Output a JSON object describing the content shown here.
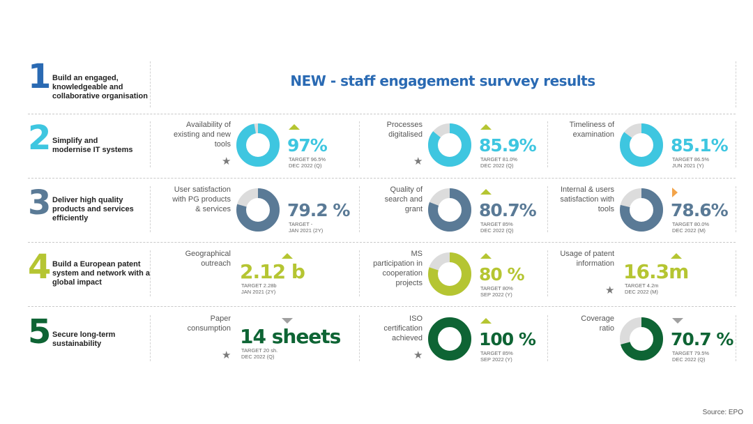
{
  "headline": "NEW - staff engagement survvey results",
  "source": "Source: EPO",
  "colors": {
    "blue_dark": "#2a6ab3",
    "cyan": "#3ec6e0",
    "slate": "#5a7a96",
    "lime": "#b5c532",
    "green": "#0e6434",
    "grey_ring": "#dcdcdc",
    "trend_up": "#b5c532",
    "trend_down": "#a0a0a0",
    "trend_neutral": "#f3a44a"
  },
  "objectives": [
    {
      "number": "1",
      "title_lines": [
        "Build an engaged,",
        "knowledgeable and",
        "collaborative organisation"
      ],
      "color": "#2a6ab3"
    },
    {
      "number": "2",
      "title_lines": [
        "Simplify and",
        "modernise IT systems"
      ],
      "color": "#3ec6e0"
    },
    {
      "number": "3",
      "title_lines": [
        "Deliver high quality",
        "products and services",
        "efficiently"
      ],
      "color": "#5a7a96"
    },
    {
      "number": "4",
      "title_lines": [
        "Build a European patent",
        "system and network with a",
        "global impact"
      ],
      "color": "#b5c532"
    },
    {
      "number": "5",
      "title_lines": [
        "Secure long-term",
        "sustainability"
      ],
      "color": "#0e6434"
    }
  ],
  "kpis": [
    [
      {
        "label_lines": [
          "Availability of",
          "existing and new",
          "tools"
        ],
        "value": "97%",
        "percent": 97,
        "target": "TARGET 96.5%",
        "date": "DEC 2022 (Q)",
        "trend": "up",
        "star": true,
        "donut": true,
        "color": "#3ec6e0"
      },
      {
        "label_lines": [
          "Processes",
          "digitalised"
        ],
        "value": "85.9%",
        "percent": 85.9,
        "target": "TARGET 81.0%",
        "date": "DEC 2022 (Q)",
        "trend": "up",
        "star": true,
        "donut": true,
        "color": "#3ec6e0"
      },
      {
        "label_lines": [
          "Timeliness of",
          "examination"
        ],
        "value": "85.1%",
        "percent": 85.1,
        "target": "TARGET 86.5%",
        "date": "JUN 2021 (Y)",
        "trend": "none",
        "star": false,
        "donut": true,
        "color": "#3ec6e0"
      }
    ],
    [
      {
        "label_lines": [
          "User satisfaction",
          "with PG products",
          "& services"
        ],
        "value": "79.2 %",
        "percent": 79.2,
        "target": "TARGET -",
        "date": "JAN 2021 (2Y)",
        "trend": "none",
        "star": false,
        "donut": true,
        "color": "#5a7a96"
      },
      {
        "label_lines": [
          "Quality of",
          "search and",
          "grant"
        ],
        "value": "80.7%",
        "percent": 80.7,
        "target": "TARGET 85%",
        "date": "DEC 2022 (Q)",
        "trend": "up",
        "star": false,
        "donut": true,
        "color": "#5a7a96"
      },
      {
        "label_lines": [
          "Internal & users",
          "satisfaction with",
          "tools"
        ],
        "value": "78.6%",
        "percent": 78.6,
        "target": "TARGET 80.0%",
        "date": "DEC 2022 (M)",
        "trend": "neutral",
        "star": false,
        "donut": true,
        "color": "#5a7a96"
      }
    ],
    [
      {
        "label_lines": [
          "Geographical",
          "outreach"
        ],
        "value": "2.12 b",
        "percent": null,
        "target": "TARGET 2.28b",
        "date": "JAN 2021 (2Y)",
        "trend": "up",
        "star": false,
        "donut": false,
        "color": "#b5c532"
      },
      {
        "label_lines": [
          "MS",
          "participation in",
          "cooperation",
          "projects"
        ],
        "value": "80 %",
        "percent": 80,
        "target": "TARGET 80%",
        "date": "SEP 2022 (Y)",
        "trend": "up",
        "star": false,
        "donut": true,
        "color": "#b5c532"
      },
      {
        "label_lines": [
          "Usage of patent",
          "information"
        ],
        "value": "16.3m",
        "percent": null,
        "target": "TARGET 4.2m",
        "date": "DEC 2022 (M)",
        "trend": "up",
        "star": true,
        "donut": false,
        "color": "#b5c532"
      }
    ],
    [
      {
        "label_lines": [
          "Paper",
          "consumption"
        ],
        "value": "14 sheets",
        "percent": null,
        "target": "TARGET 20 sh.",
        "date": "DEC 2022 (Q)",
        "trend": "down",
        "star": true,
        "donut": false,
        "color": "#0e6434"
      },
      {
        "label_lines": [
          "ISO",
          "certification",
          "achieved"
        ],
        "value": "100 %",
        "percent": 100,
        "target": "TARGET 85%",
        "date": "SEP 2022 (Y)",
        "trend": "up",
        "star": true,
        "donut": true,
        "color": "#0e6434"
      },
      {
        "label_lines": [
          "Coverage",
          "ratio"
        ],
        "value": "70.7 %",
        "percent": 70.7,
        "target": "TARGET 79.5%",
        "date": "DEC 2022 (Q)",
        "trend": "down",
        "star": false,
        "donut": true,
        "color": "#0e6434"
      }
    ]
  ]
}
